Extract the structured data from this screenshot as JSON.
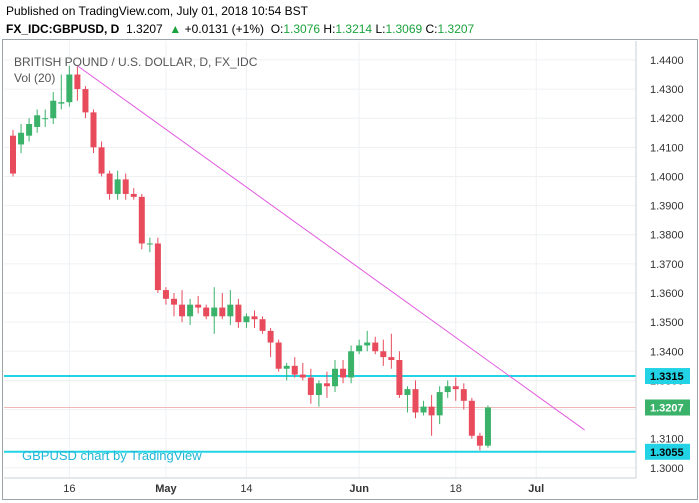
{
  "header": {
    "published": "Published on TradingView.com, July 01, 2018 10:54 BST",
    "symbol": "FX_IDC:GBPUSD, D",
    "last": "1.3207",
    "change_arrow": "▲",
    "change": "+0.0131 (+1%)",
    "o_label": "O:",
    "o": "1.3076",
    "h_label": "H:",
    "h": "1.3214",
    "l_label": "L:",
    "l": "1.3069",
    "c_label": "C:",
    "c": "1.3207"
  },
  "chart_data": {
    "type": "candlestick",
    "title": "BRITISH POUND / U.S. DOLLAR, D, FX_IDC",
    "indicator": "Vol (20)",
    "watermark": "GBPUSD chart by TradingView",
    "ylim": [
      1.2965,
      1.4465
    ],
    "y_ticks": [
      "1.4400",
      "1.4300",
      "1.4200",
      "1.4100",
      "1.4000",
      "1.3900",
      "1.3800",
      "1.3700",
      "1.3600",
      "1.3500",
      "1.3400",
      "1.3300",
      "1.3200",
      "1.3100",
      "1.3000"
    ],
    "x_ticks": [
      {
        "label": "16",
        "i": 7,
        "bold": false
      },
      {
        "label": "May",
        "i": 19,
        "bold": true
      },
      {
        "label": "14",
        "i": 29,
        "bold": false
      },
      {
        "label": "Jun",
        "i": 43,
        "bold": true
      },
      {
        "label": "18",
        "i": 55,
        "bold": false
      },
      {
        "label": "Jul",
        "i": 65,
        "bold": true
      }
    ],
    "bars": [
      {
        "o": 1.414,
        "h": 1.416,
        "l": 1.4,
        "c": 1.401
      },
      {
        "o": 1.411,
        "h": 1.418,
        "l": 1.408,
        "c": 1.415
      },
      {
        "o": 1.414,
        "h": 1.42,
        "l": 1.412,
        "c": 1.418
      },
      {
        "o": 1.417,
        "h": 1.423,
        "l": 1.415,
        "c": 1.421
      },
      {
        "o": 1.42,
        "h": 1.423,
        "l": 1.417,
        "c": 1.42
      },
      {
        "o": 1.42,
        "h": 1.429,
        "l": 1.418,
        "c": 1.426
      },
      {
        "o": 1.425,
        "h": 1.435,
        "l": 1.423,
        "c": 1.4255
      },
      {
        "o": 1.4255,
        "h": 1.438,
        "l": 1.424,
        "c": 1.435
      },
      {
        "o": 1.435,
        "h": 1.4377,
        "l": 1.426,
        "c": 1.43
      },
      {
        "o": 1.43,
        "h": 1.431,
        "l": 1.42,
        "c": 1.422
      },
      {
        "o": 1.422,
        "h": 1.423,
        "l": 1.408,
        "c": 1.41
      },
      {
        "o": 1.41,
        "h": 1.412,
        "l": 1.4,
        "c": 1.401
      },
      {
        "o": 1.401,
        "h": 1.402,
        "l": 1.392,
        "c": 1.394
      },
      {
        "o": 1.394,
        "h": 1.402,
        "l": 1.392,
        "c": 1.399
      },
      {
        "o": 1.399,
        "h": 1.401,
        "l": 1.392,
        "c": 1.394
      },
      {
        "o": 1.394,
        "h": 1.396,
        "l": 1.392,
        "c": 1.393
      },
      {
        "o": 1.393,
        "h": 1.394,
        "l": 1.375,
        "c": 1.377
      },
      {
        "o": 1.377,
        "h": 1.379,
        "l": 1.374,
        "c": 1.377
      },
      {
        "o": 1.377,
        "h": 1.379,
        "l": 1.36,
        "c": 1.361
      },
      {
        "o": 1.361,
        "h": 1.362,
        "l": 1.356,
        "c": 1.358
      },
      {
        "o": 1.358,
        "h": 1.36,
        "l": 1.352,
        "c": 1.356
      },
      {
        "o": 1.356,
        "h": 1.361,
        "l": 1.35,
        "c": 1.352
      },
      {
        "o": 1.352,
        "h": 1.358,
        "l": 1.349,
        "c": 1.356
      },
      {
        "o": 1.356,
        "h": 1.359,
        "l": 1.353,
        "c": 1.355
      },
      {
        "o": 1.355,
        "h": 1.356,
        "l": 1.351,
        "c": 1.352
      },
      {
        "o": 1.352,
        "h": 1.362,
        "l": 1.346,
        "c": 1.355
      },
      {
        "o": 1.355,
        "h": 1.36,
        "l": 1.351,
        "c": 1.352
      },
      {
        "o": 1.352,
        "h": 1.361,
        "l": 1.349,
        "c": 1.356
      },
      {
        "o": 1.356,
        "h": 1.358,
        "l": 1.348,
        "c": 1.35
      },
      {
        "o": 1.35,
        "h": 1.353,
        "l": 1.348,
        "c": 1.352
      },
      {
        "o": 1.352,
        "h": 1.354,
        "l": 1.348,
        "c": 1.351
      },
      {
        "o": 1.351,
        "h": 1.352,
        "l": 1.346,
        "c": 1.347
      },
      {
        "o": 1.347,
        "h": 1.348,
        "l": 1.338,
        "c": 1.343
      },
      {
        "o": 1.343,
        "h": 1.344,
        "l": 1.333,
        "c": 1.334
      },
      {
        "o": 1.334,
        "h": 1.336,
        "l": 1.33,
        "c": 1.335
      },
      {
        "o": 1.335,
        "h": 1.338,
        "l": 1.331,
        "c": 1.332
      },
      {
        "o": 1.332,
        "h": 1.336,
        "l": 1.33,
        "c": 1.331
      },
      {
        "o": 1.331,
        "h": 1.334,
        "l": 1.322,
        "c": 1.325
      },
      {
        "o": 1.325,
        "h": 1.33,
        "l": 1.321,
        "c": 1.329
      },
      {
        "o": 1.329,
        "h": 1.333,
        "l": 1.324,
        "c": 1.328
      },
      {
        "o": 1.328,
        "h": 1.337,
        "l": 1.326,
        "c": 1.334
      },
      {
        "o": 1.334,
        "h": 1.337,
        "l": 1.329,
        "c": 1.331
      },
      {
        "o": 1.331,
        "h": 1.342,
        "l": 1.329,
        "c": 1.34
      },
      {
        "o": 1.34,
        "h": 1.344,
        "l": 1.339,
        "c": 1.342
      },
      {
        "o": 1.342,
        "h": 1.347,
        "l": 1.34,
        "c": 1.343
      },
      {
        "o": 1.343,
        "h": 1.345,
        "l": 1.339,
        "c": 1.34
      },
      {
        "o": 1.34,
        "h": 1.344,
        "l": 1.335,
        "c": 1.338
      },
      {
        "o": 1.338,
        "h": 1.346,
        "l": 1.334,
        "c": 1.337
      },
      {
        "o": 1.337,
        "h": 1.34,
        "l": 1.324,
        "c": 1.325
      },
      {
        "o": 1.325,
        "h": 1.328,
        "l": 1.319,
        "c": 1.327
      },
      {
        "o": 1.327,
        "h": 1.33,
        "l": 1.317,
        "c": 1.319
      },
      {
        "o": 1.319,
        "h": 1.323,
        "l": 1.318,
        "c": 1.321
      },
      {
        "o": 1.321,
        "h": 1.325,
        "l": 1.311,
        "c": 1.318
      },
      {
        "o": 1.318,
        "h": 1.328,
        "l": 1.315,
        "c": 1.326
      },
      {
        "o": 1.326,
        "h": 1.33,
        "l": 1.324,
        "c": 1.328
      },
      {
        "o": 1.328,
        "h": 1.331,
        "l": 1.323,
        "c": 1.327
      },
      {
        "o": 1.327,
        "h": 1.329,
        "l": 1.32,
        "c": 1.323
      },
      {
        "o": 1.323,
        "h": 1.324,
        "l": 1.31,
        "c": 1.311
      },
      {
        "o": 1.311,
        "h": 1.312,
        "l": 1.306,
        "c": 1.3076
      },
      {
        "o": 1.3076,
        "h": 1.3214,
        "l": 1.3069,
        "c": 1.3207
      }
    ],
    "hlines": [
      {
        "value": 1.3315,
        "label": "1.3315",
        "color": "#22d3e6",
        "label_bg": "#22d3e6"
      },
      {
        "value": 1.3055,
        "label": "1.3055",
        "color": "#22d3e6",
        "label_bg": "#22d3e6"
      }
    ],
    "last_price": {
      "value": 1.3207,
      "label": "1.3207",
      "bg": "#3ab26a"
    },
    "trendline": {
      "from": {
        "i": 8,
        "y": 1.438
      },
      "to": {
        "i": 71,
        "y": 1.313
      },
      "color": "#e25ae0"
    },
    "colors": {
      "up": "#3ab26a",
      "down": "#e84c5c",
      "grid": "#eef1f4",
      "axis_text": "#333333"
    }
  }
}
